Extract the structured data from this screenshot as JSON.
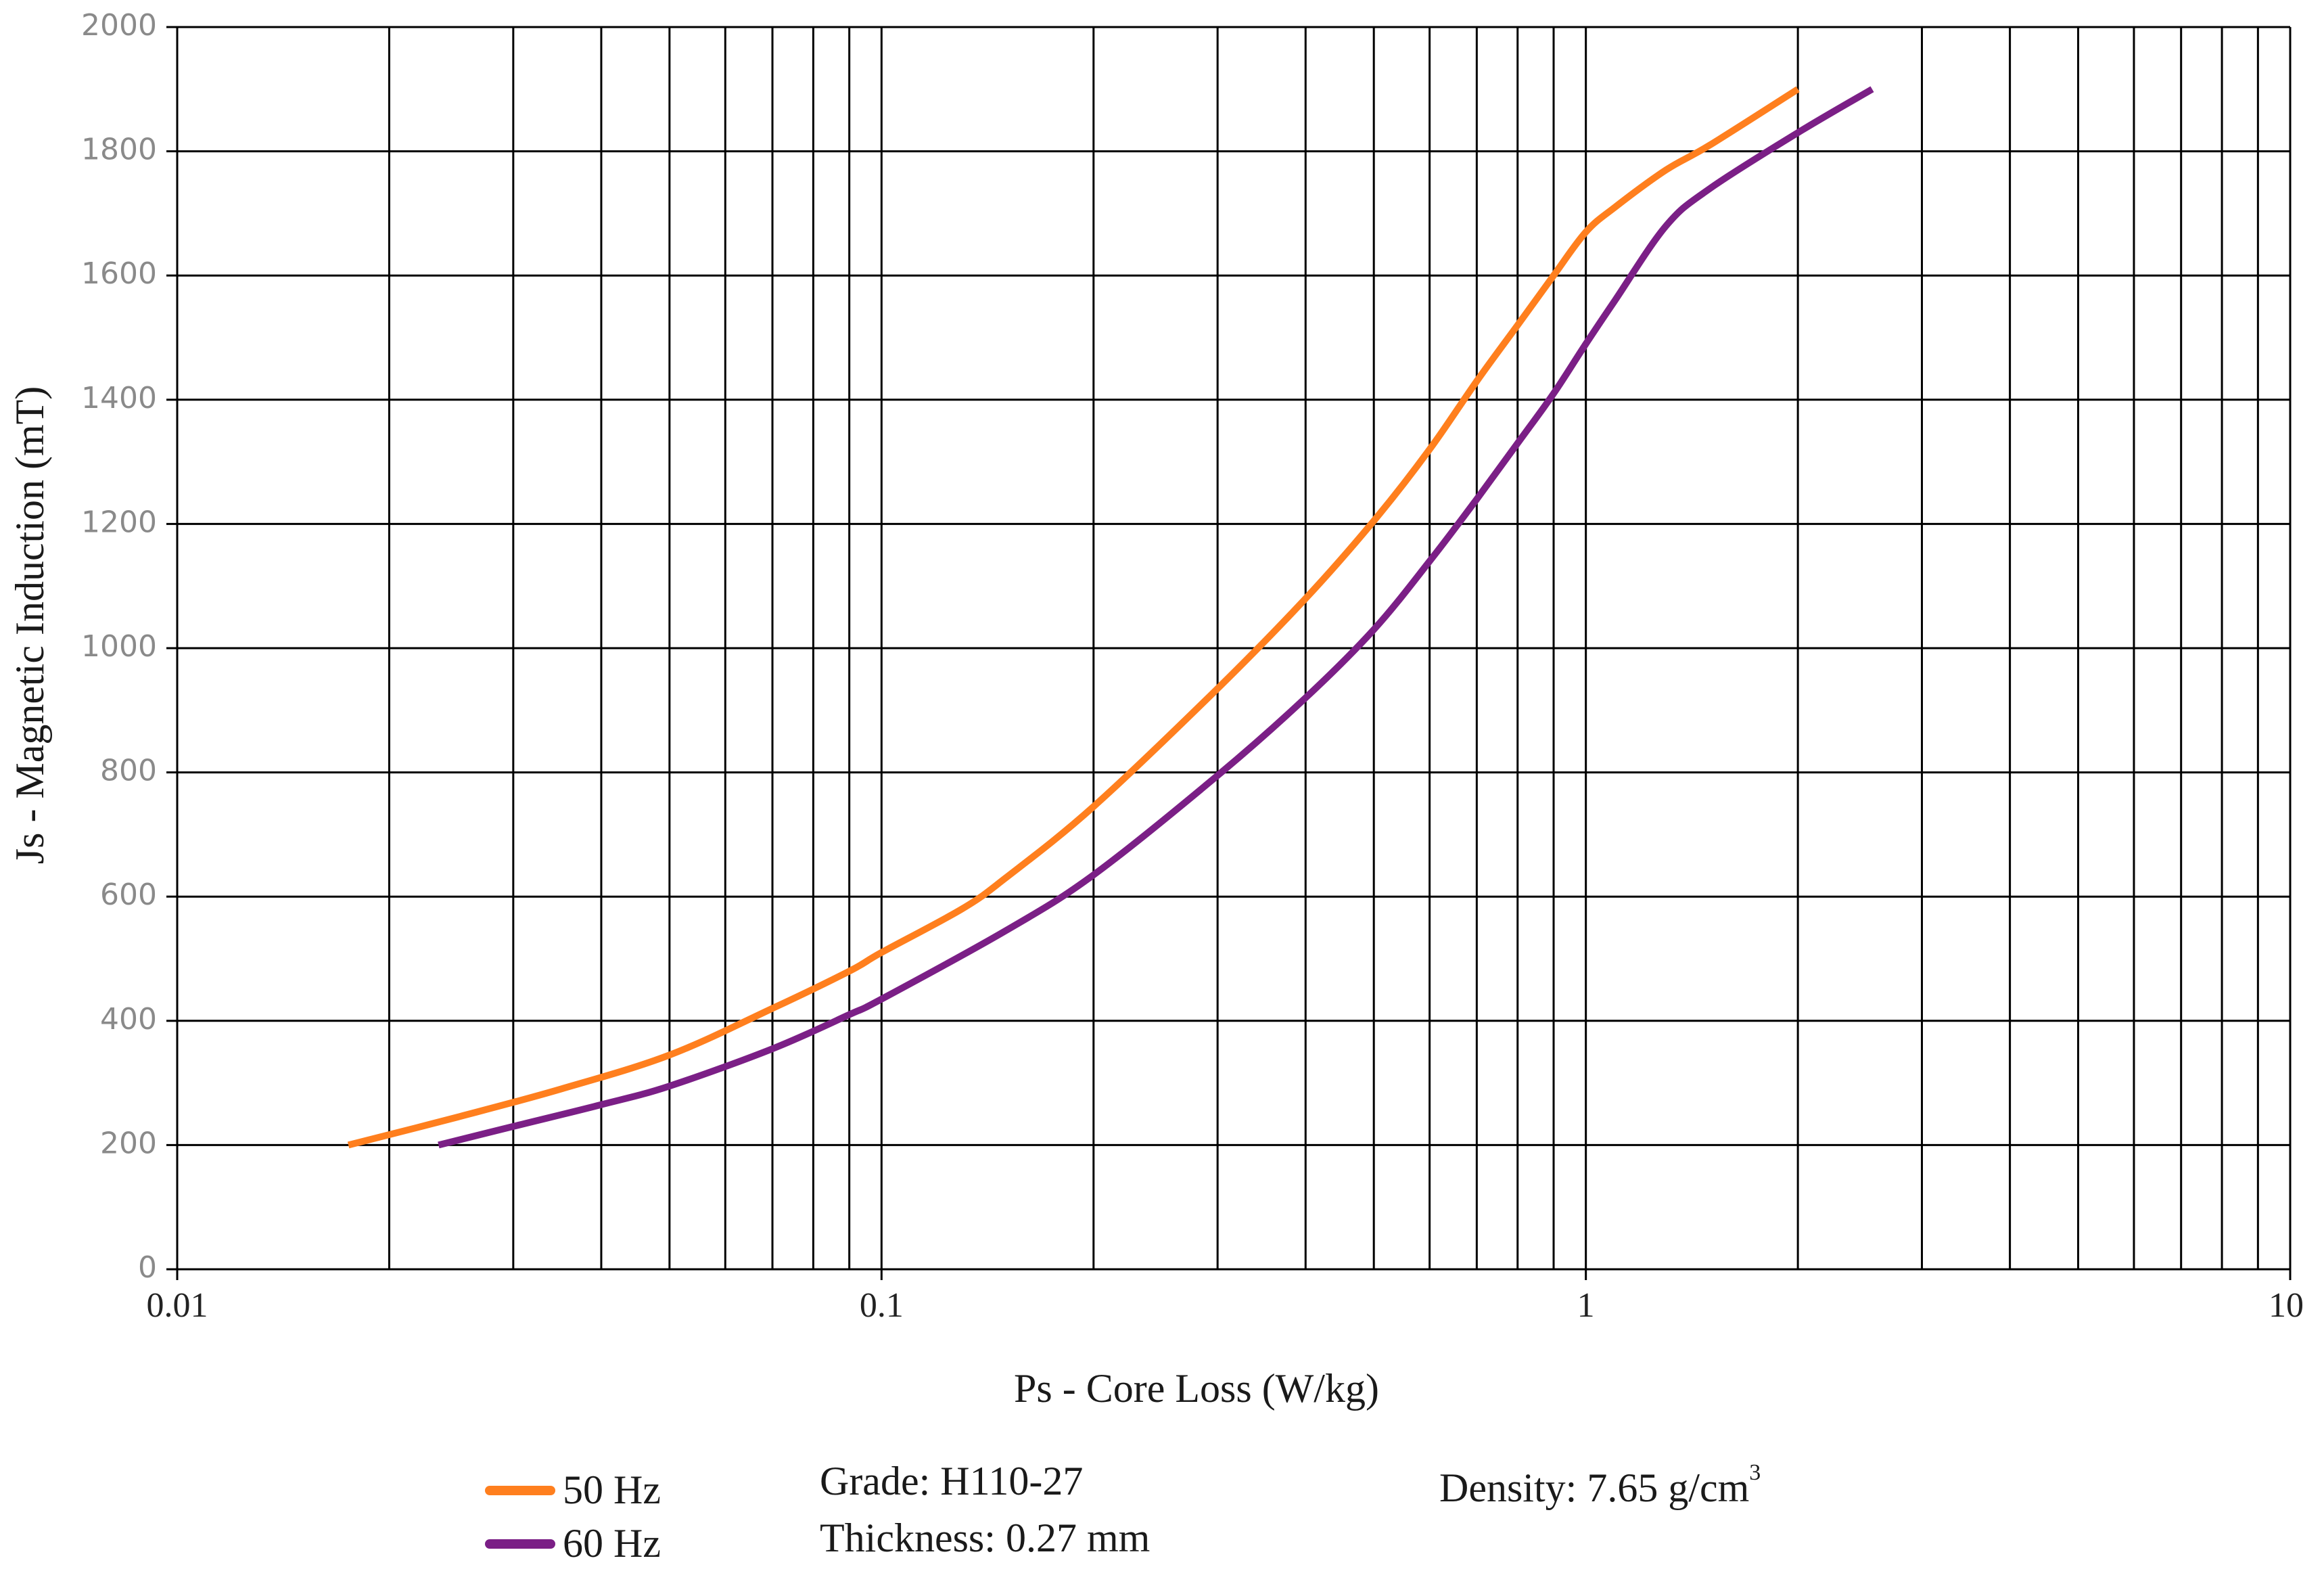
{
  "chart_data": {
    "type": "line",
    "title": "",
    "xlabel": "Ps - Core Loss (W/kg)",
    "ylabel": "Js - Magnetic Induction (mT)",
    "x_scale": "log",
    "xlim": [
      0.01,
      10
    ],
    "ylim": [
      0,
      2000
    ],
    "x_ticks": [
      0.01,
      0.1,
      1,
      10
    ],
    "x_tick_labels": [
      "0.01",
      "0.1",
      "1",
      "10"
    ],
    "y_ticks": [
      0,
      200,
      400,
      600,
      800,
      1000,
      1200,
      1400,
      1600,
      1800,
      2000
    ],
    "y_tick_labels": [
      "0",
      "200",
      "400",
      "600",
      "800",
      "1000",
      "1200",
      "1400",
      "1600",
      "1800",
      "2000"
    ],
    "grid": true,
    "legend_position": "bottom-left",
    "series": [
      {
        "name": "50 Hz",
        "color": "#FF7F1E",
        "x": [
          0.0175,
          0.025,
          0.035,
          0.05,
          0.07,
          0.09,
          0.1,
          0.13,
          0.15,
          0.2,
          0.3,
          0.4,
          0.5,
          0.6,
          0.7,
          0.8,
          0.9,
          1.0,
          1.1,
          1.3,
          1.5,
          2.0
        ],
        "y": [
          200,
          245,
          290,
          345,
          420,
          480,
          510,
          580,
          630,
          745,
          935,
          1080,
          1205,
          1320,
          1430,
          1520,
          1600,
          1670,
          1710,
          1770,
          1810,
          1900
        ]
      },
      {
        "name": "60 Hz",
        "color": "#7B1F86",
        "x": [
          0.0235,
          0.03,
          0.04,
          0.05,
          0.07,
          0.09,
          0.1,
          0.15,
          0.2,
          0.3,
          0.4,
          0.5,
          0.6,
          0.7,
          0.8,
          0.9,
          1.0,
          1.1,
          1.3,
          1.5,
          2.0,
          2.55
        ],
        "y": [
          200,
          230,
          265,
          295,
          355,
          410,
          435,
          545,
          635,
          795,
          920,
          1030,
          1140,
          1240,
          1330,
          1410,
          1490,
          1560,
          1680,
          1740,
          1830,
          1900
        ]
      }
    ]
  },
  "legend": {
    "items": [
      {
        "label": "50 Hz",
        "color": "#FF7F1E"
      },
      {
        "label": "60 Hz",
        "color": "#7B1F86"
      }
    ]
  },
  "info": {
    "grade": "Grade: H110-27",
    "thickness": "Thickness: 0.27 mm",
    "density": "Density: 7.65 g/cm",
    "density_sup": "3"
  }
}
